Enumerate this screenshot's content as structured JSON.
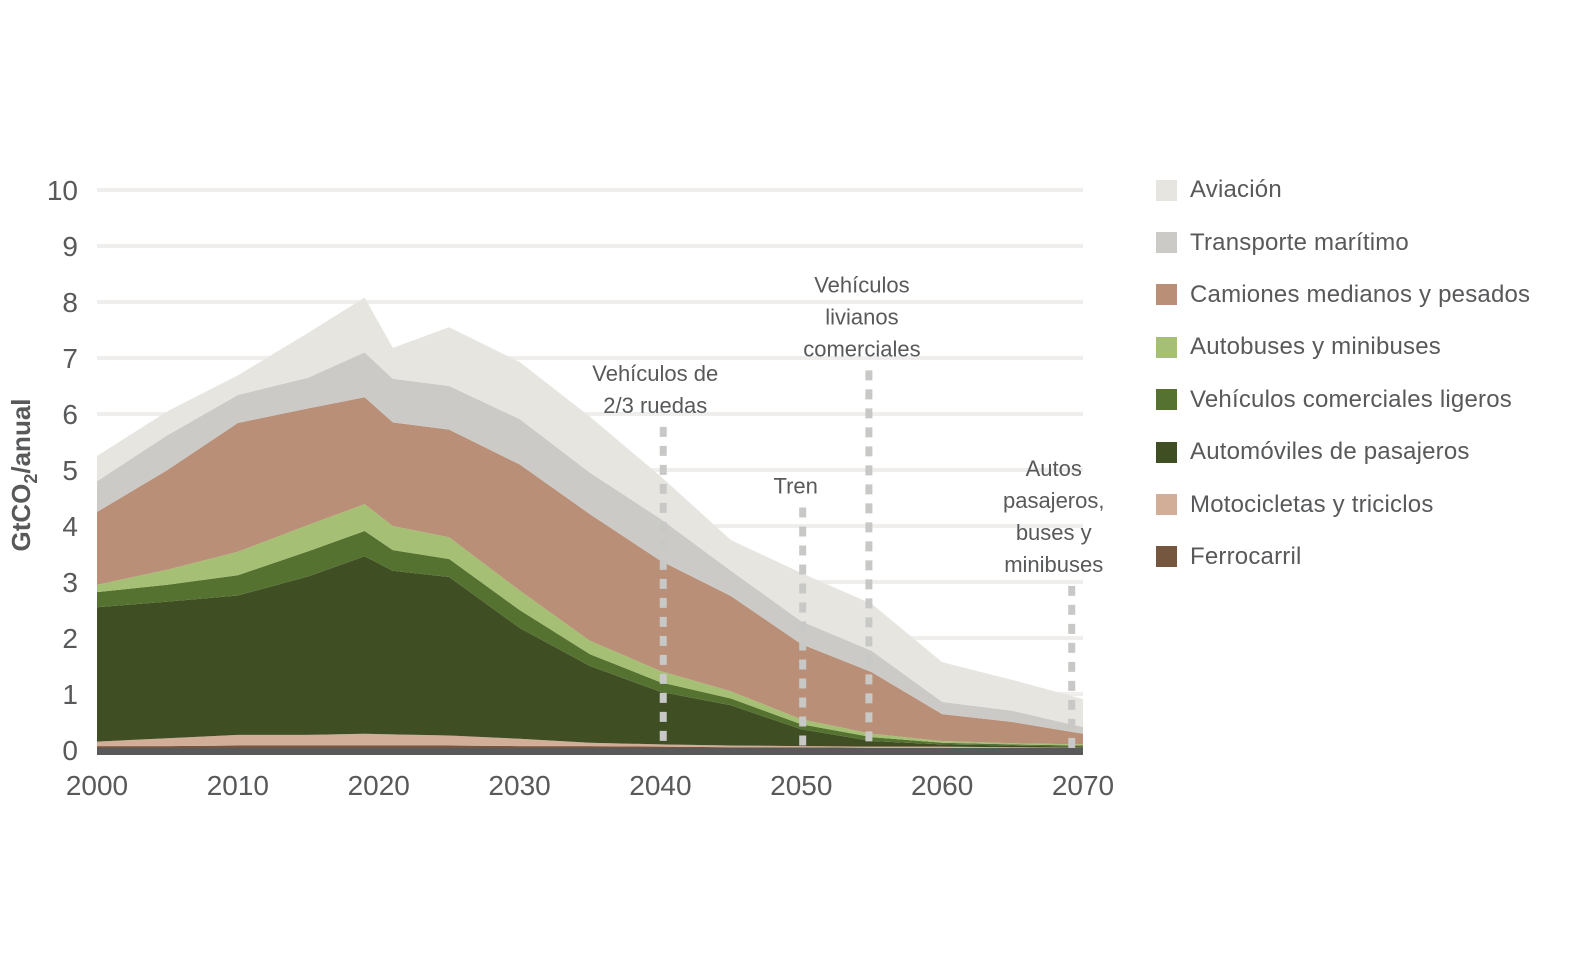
{
  "colors": {
    "text": "#58595b",
    "grid": "#efeeec",
    "axis_bar": "#58595b",
    "dashed_line": "#c8c8c6",
    "background": "#ffffff"
  },
  "y_axis": {
    "label_pre": "GtCO",
    "label_sub": "2",
    "label_post": "/anual",
    "ticks": [
      "0",
      "1",
      "2",
      "3",
      "4",
      "5",
      "6",
      "7",
      "8",
      "9",
      "10"
    ]
  },
  "x_axis": {
    "ticks": [
      "2000",
      "2010",
      "2020",
      "2030",
      "2040",
      "2050",
      "2060",
      "2070"
    ]
  },
  "legend": {
    "items": [
      {
        "label": "Aviación",
        "color": "#e7e5e0"
      },
      {
        "label": "Transporte marítimo",
        "color": "#cbcac6"
      },
      {
        "label": "Camiones medianos y pesados",
        "color": "#b98f77"
      },
      {
        "label": "Autobuses y minibuses",
        "color": "#a5bf74"
      },
      {
        "label": "Vehículos comerciales ligeros",
        "color": "#567231"
      },
      {
        "label": "Automóviles de pasajeros",
        "color": "#3f4e23"
      },
      {
        "label": "Motocicletas y triciclos",
        "color": "#d2ae99"
      },
      {
        "label": "Ferrocarril",
        "color": "#75563e"
      }
    ]
  },
  "chart_data": {
    "type": "area",
    "stacked": true,
    "title": "",
    "xlabel": "",
    "ylabel": "GtCO2/anual",
    "xlim": [
      2000,
      2070
    ],
    "ylim": [
      0,
      10
    ],
    "grid": "horizontal",
    "legend_position": "right",
    "x": [
      2000,
      2005,
      2010,
      2015,
      2019,
      2021,
      2025,
      2030,
      2035,
      2040,
      2045,
      2050,
      2055,
      2060,
      2065,
      2070
    ],
    "series": [
      {
        "name": "Ferrocarril",
        "color": "#75563e",
        "values": [
          0.07,
          0.07,
          0.08,
          0.08,
          0.08,
          0.08,
          0.08,
          0.07,
          0.07,
          0.06,
          0.05,
          0.05,
          0.04,
          0.04,
          0.03,
          0.02
        ]
      },
      {
        "name": "Motocicletas y triciclos",
        "color": "#d2ae99",
        "values": [
          0.08,
          0.14,
          0.19,
          0.19,
          0.21,
          0.2,
          0.18,
          0.13,
          0.06,
          0.04,
          0.03,
          0.02,
          0.02,
          0.02,
          0.02,
          0.02
        ]
      },
      {
        "name": "Automóviles de pasajeros",
        "color": "#3f4e23",
        "values": [
          2.4,
          2.44,
          2.49,
          2.83,
          3.17,
          2.92,
          2.83,
          1.98,
          1.37,
          0.94,
          0.72,
          0.3,
          0.1,
          0.04,
          0.03,
          0.02
        ]
      },
      {
        "name": "Vehículos comerciales ligeros",
        "color": "#567231",
        "values": [
          0.27,
          0.3,
          0.36,
          0.45,
          0.45,
          0.37,
          0.32,
          0.32,
          0.21,
          0.17,
          0.12,
          0.09,
          0.07,
          0.03,
          0.02,
          0.02
        ]
      },
      {
        "name": "Autobuses y minibuses",
        "color": "#a5bf74",
        "values": [
          0.13,
          0.27,
          0.42,
          0.47,
          0.48,
          0.43,
          0.39,
          0.35,
          0.24,
          0.2,
          0.13,
          0.09,
          0.06,
          0.03,
          0.02,
          0.02
        ]
      },
      {
        "name": "Camiones medianos y pesados",
        "color": "#b98f77",
        "values": [
          1.3,
          1.78,
          2.3,
          2.08,
          1.91,
          1.85,
          1.92,
          2.25,
          2.26,
          1.97,
          1.7,
          1.34,
          1.1,
          0.48,
          0.38,
          0.19
        ]
      },
      {
        "name": "Transporte marítimo",
        "color": "#cbcac6",
        "values": [
          0.55,
          0.62,
          0.5,
          0.55,
          0.8,
          0.78,
          0.78,
          0.81,
          0.74,
          0.75,
          0.45,
          0.41,
          0.38,
          0.22,
          0.2,
          0.12
        ]
      },
      {
        "name": "Aviación",
        "color": "#e7e5e0",
        "values": [
          0.45,
          0.43,
          0.35,
          0.8,
          0.98,
          0.55,
          1.05,
          1.02,
          1.0,
          0.76,
          0.55,
          0.86,
          0.84,
          0.71,
          0.55,
          0.5
        ]
      }
    ],
    "annotations": [
      {
        "id": "vehiculos-2-3-ruedas",
        "lines": [
          "Vehículos de",
          "2/3 ruedas"
        ],
        "year": 2040.2,
        "top_value": 5.77,
        "dx": -8
      },
      {
        "id": "tren",
        "lines": [
          "Tren"
        ],
        "year": 2050.1,
        "top_value": 4.33,
        "dx": -7
      },
      {
        "id": "vehiculos-livianos-comerciales",
        "lines": [
          "Vehículos",
          "livianos",
          "comerciales"
        ],
        "year": 2054.8,
        "top_value": 6.78,
        "dx": -7
      },
      {
        "id": "autos-pasajeros-buses-minibuses",
        "lines": [
          "Autos",
          "pasajeros,",
          "buses y",
          "minibuses"
        ],
        "year": 2069.2,
        "top_value": 2.93,
        "dx": -18
      }
    ]
  }
}
